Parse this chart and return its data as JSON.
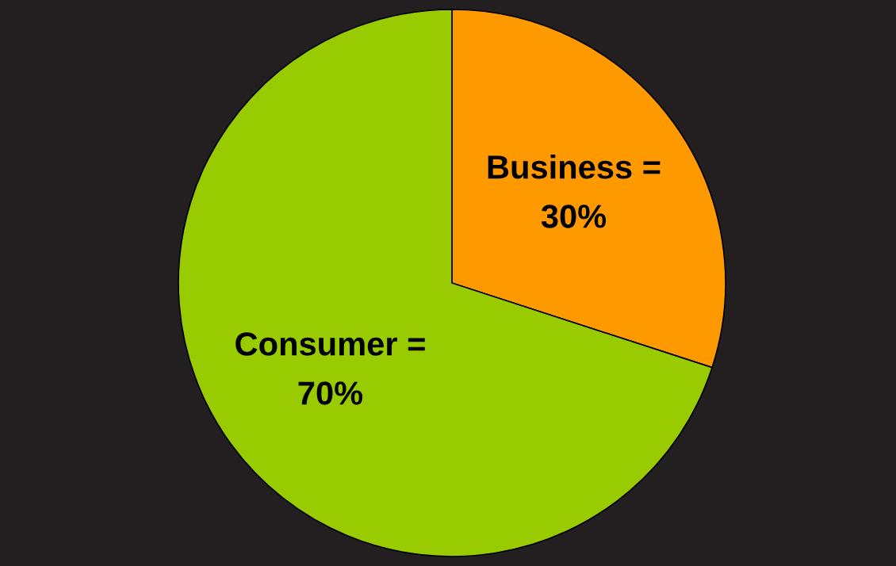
{
  "chart_data": {
    "type": "pie",
    "categories": [
      "Business =",
      "Consumer ="
    ],
    "values": [
      30,
      70
    ],
    "colors": [
      "#ff9900",
      "#99cc00"
    ],
    "value_labels": [
      "30%",
      "70%"
    ]
  }
}
